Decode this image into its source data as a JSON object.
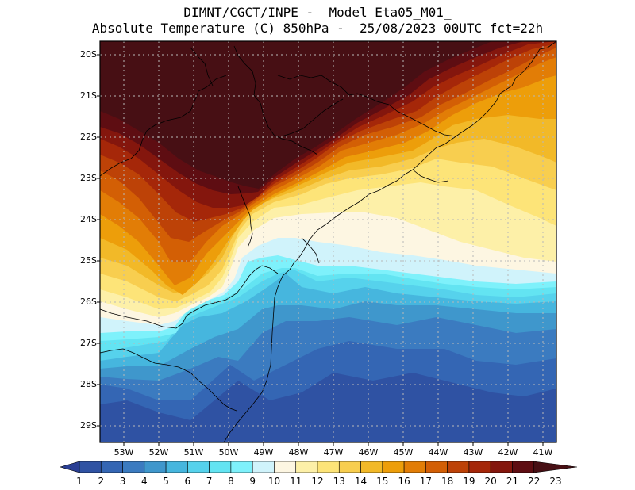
{
  "header": {
    "line1": "DIMNT/CGCT/INPE -  Model Eta05_M01_",
    "line2": "Absolute Temperature (C) 850hPa -  25/08/2023 00UTC fct=22h"
  },
  "map": {
    "lat_labels": [
      "20S",
      "21S",
      "22S",
      "23S",
      "24S",
      "25S",
      "26S",
      "27S",
      "28S",
      "29S"
    ],
    "lon_labels": [
      "53W",
      "52W",
      "51W",
      "50W",
      "49W",
      "48W",
      "47W",
      "46W",
      "45W",
      "44W",
      "43W",
      "42W",
      "41W"
    ]
  },
  "colorbar": {
    "labels": [
      "1",
      "2",
      "3",
      "4",
      "5",
      "6",
      "7",
      "8",
      "9",
      "10",
      "11",
      "12",
      "13",
      "14",
      "15",
      "16",
      "17",
      "18",
      "19",
      "20",
      "21",
      "22",
      "23"
    ],
    "colors": [
      "#2a3f94",
      "#2f52a3",
      "#3466b4",
      "#3b7bc0",
      "#3f97cc",
      "#46b6de",
      "#56d2ec",
      "#63e4f2",
      "#7ef1fb",
      "#d0f3fb",
      "#fdf6e2",
      "#fdf0a8",
      "#fde478",
      "#f8ce4f",
      "#f2b928",
      "#ed9e0a",
      "#e27d06",
      "#d35f05",
      "#bd4207",
      "#a52709",
      "#84160d",
      "#5e0d12",
      "#470f14"
    ]
  }
}
